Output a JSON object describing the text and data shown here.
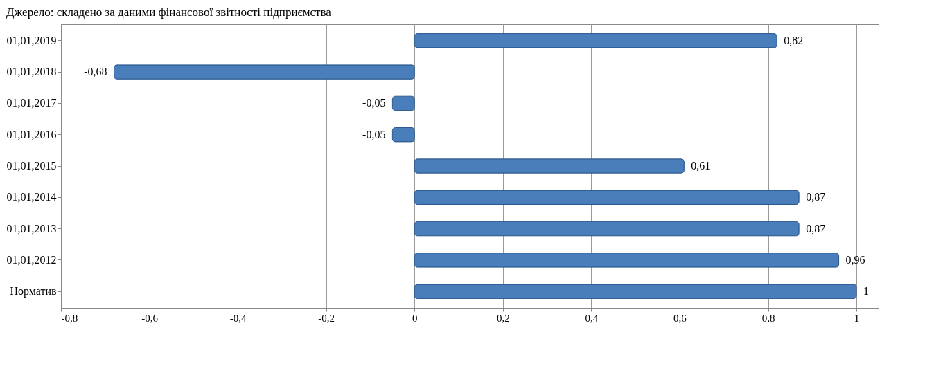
{
  "chart_data": {
    "type": "bar",
    "orientation": "horizontal",
    "annotations": [
      "Джерело: складено за даними фінансової звітності підприємства"
    ],
    "categories": [
      "01,01,2019",
      "01,01,2018",
      "01,01,2017",
      "01,01,2016",
      "01,01,2015",
      "01,01,2014",
      "01,01,2013",
      "01,01,2012",
      "Норматив"
    ],
    "values": [
      0.82,
      -0.68,
      -0.05,
      -0.05,
      0.61,
      0.87,
      0.87,
      0.96,
      1
    ],
    "value_labels": [
      "0,82",
      "-0,68",
      "-0,05",
      "-0,05",
      "0,61",
      "0,87",
      "0,87",
      "0,96",
      "1"
    ],
    "color": "#4a7ebb",
    "xlim": [
      -0.8,
      1.05
    ],
    "xticks": [
      {
        "value": -0.8,
        "label": "-0,8"
      },
      {
        "value": -0.6,
        "label": "-0,6"
      },
      {
        "value": -0.4,
        "label": "-0,4"
      },
      {
        "value": -0.2,
        "label": "-0,2"
      },
      0,
      {
        "value": 0.2,
        "label": "0,2"
      },
      {
        "value": 0.4,
        "label": "0,4"
      },
      {
        "value": 0.6,
        "label": "0,6"
      },
      {
        "value": 0.8,
        "label": "0,8"
      },
      1
    ],
    "grid": "x"
  }
}
